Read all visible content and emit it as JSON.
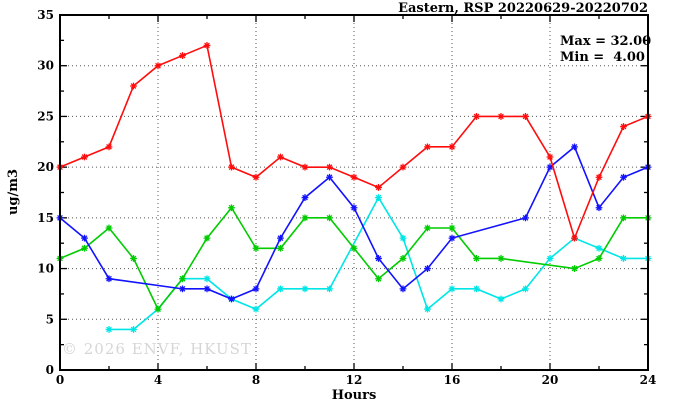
{
  "watermark": "© 2026 ENVF, HKUST",
  "chart_data": {
    "type": "line",
    "title": "Eastern, RSP 20220629-20220702",
    "xlabel": "Hours",
    "ylabel": "ug/m3",
    "xlim": [
      0,
      24
    ],
    "ylim": [
      0,
      35
    ],
    "x_major_ticks": [
      0,
      4,
      8,
      12,
      16,
      20,
      24
    ],
    "x_minor_step": 2,
    "y_major_ticks": [
      0,
      5,
      10,
      15,
      20,
      25,
      30,
      35
    ],
    "y_minor_step": 2.5,
    "grid": true,
    "legend_position": "top-right-inside",
    "annotations": [
      "Max = 32.00",
      "Min =  4.00"
    ],
    "x": [
      0,
      1,
      2,
      3,
      4,
      5,
      6,
      7,
      8,
      9,
      10,
      11,
      12,
      13,
      14,
      15,
      16,
      17,
      18,
      19,
      20,
      21,
      22,
      23,
      24
    ],
    "series": [
      {
        "name": "cyan",
        "color": "#00e6e6",
        "values": [
          null,
          null,
          4,
          4,
          6,
          9,
          9,
          7,
          6,
          8,
          8,
          8,
          null,
          17,
          13,
          6,
          8,
          8,
          7,
          8,
          11,
          13,
          12,
          11,
          11
        ]
      },
      {
        "name": "green",
        "color": "#00cc00",
        "values": [
          11,
          12,
          14,
          11,
          6,
          9,
          13,
          16,
          12,
          12,
          15,
          15,
          12,
          9,
          11,
          14,
          14,
          11,
          11,
          null,
          null,
          10,
          11,
          15,
          15
        ]
      },
      {
        "name": "blue",
        "color": "#1212ff",
        "values": [
          15,
          13,
          9,
          null,
          null,
          8,
          8,
          7,
          8,
          13,
          17,
          19,
          16,
          11,
          8,
          10,
          13,
          null,
          null,
          15,
          20,
          22,
          16,
          19,
          20
        ]
      },
      {
        "name": "red",
        "color": "#ff0d0d",
        "values": [
          20,
          21,
          22,
          28,
          30,
          31,
          32,
          20,
          19,
          21,
          20,
          20,
          19,
          18,
          20,
          22,
          22,
          25,
          25,
          25,
          21,
          13,
          19,
          24,
          25
        ]
      }
    ]
  }
}
